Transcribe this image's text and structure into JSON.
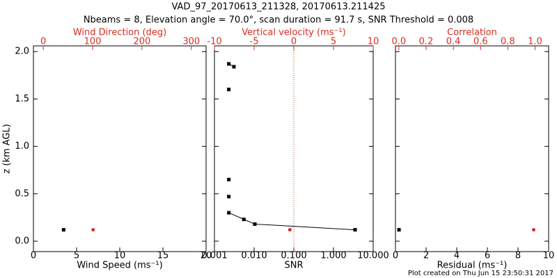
{
  "title": "VAD_97_20170613_211328, 20170613.211425",
  "subtitle": "Nbeams = 8, Elevation angle = 70.0°, scan duration = 91.7 s, SNR Threshold = 0.008",
  "footer": "Plot created on Thu Jun 15 23:50:31 2017",
  "chart_data": [
    {
      "type": "scatter",
      "xlabel": "Wind Speed (ms⁻¹)",
      "x2label": "Wind Direction (deg)",
      "ylabel": "z (km AGL)",
      "x2color": "#d62d20",
      "xlim": [
        0,
        20
      ],
      "xticks": [
        0,
        5,
        10,
        15,
        20
      ],
      "x2lim": [
        -20,
        330
      ],
      "x2ticks": [
        0,
        100,
        200,
        300
      ],
      "ylim": [
        -0.11,
        2.06
      ],
      "yticks": [
        {
          "value": 0,
          "label": "0.0"
        },
        0.5,
        {
          "value": 1,
          "label": "1.0"
        },
        1.5,
        {
          "value": 2,
          "label": "2.0"
        }
      ],
      "series": [
        {
          "color": "#000000",
          "marker": "square",
          "x": [
            3.5
          ],
          "y": [
            0.12
          ]
        },
        {
          "color": "#d62d20",
          "marker": "circle",
          "axis": "x2",
          "x": [
            101
          ],
          "y": [
            0.12
          ]
        }
      ]
    },
    {
      "type": "line",
      "xlabel": "SNR",
      "x2label": "Vertical velocity (ms⁻¹)",
      "x2color": "#d62d20",
      "xscale": "log",
      "xlim": [
        0.001,
        10
      ],
      "xticks": [
        {
          "value": 0.001,
          "label": "0.001"
        },
        {
          "value": 0.01,
          "label": "0.010"
        },
        {
          "value": 0.1,
          "label": "0.100"
        },
        {
          "value": 1,
          "label": "1.000"
        },
        {
          "value": 10,
          "label": "10.000"
        }
      ],
      "x2lim": [
        -10,
        10
      ],
      "x2ticks": [
        -10,
        -5,
        0,
        5,
        10
      ],
      "refline": {
        "axis": "x2",
        "value": 0,
        "color": "#d62d20"
      },
      "series": [
        {
          "color": "#000000",
          "marker": "square",
          "x": [
            0.0023,
            0.0031,
            null,
            0.0023,
            null,
            0.0023,
            null,
            0.0023,
            null,
            0.0023,
            0.0055,
            0.0104,
            3.5
          ],
          "y": [
            1.87,
            1.84,
            null,
            1.6,
            null,
            0.65,
            null,
            0.47,
            null,
            0.3,
            0.23,
            0.18,
            0.12
          ]
        },
        {
          "color": "#d62d20",
          "marker": "circle",
          "axis": "x2",
          "x": [
            -0.5
          ],
          "y": [
            0.12
          ]
        }
      ]
    },
    {
      "type": "scatter",
      "xlabel": "Residual (ms⁻¹)",
      "x2label": "Correlation",
      "x2color": "#d62d20",
      "xlim": [
        0,
        10
      ],
      "xticks": [
        0,
        2,
        4,
        6,
        8,
        10
      ],
      "x2lim": [
        -0.025,
        1.1
      ],
      "x2ticks": [
        {
          "value": 0,
          "label": "0.0"
        },
        0.2,
        0.4,
        0.6,
        0.8,
        {
          "value": 1,
          "label": "1.0"
        }
      ],
      "series": [
        {
          "color": "#000000",
          "marker": "square",
          "x": [
            0.23
          ],
          "y": [
            0.12
          ]
        },
        {
          "color": "#d62d20",
          "marker": "circle",
          "axis": "x2",
          "x": [
            0.99
          ],
          "y": [
            0.12
          ]
        }
      ]
    }
  ]
}
